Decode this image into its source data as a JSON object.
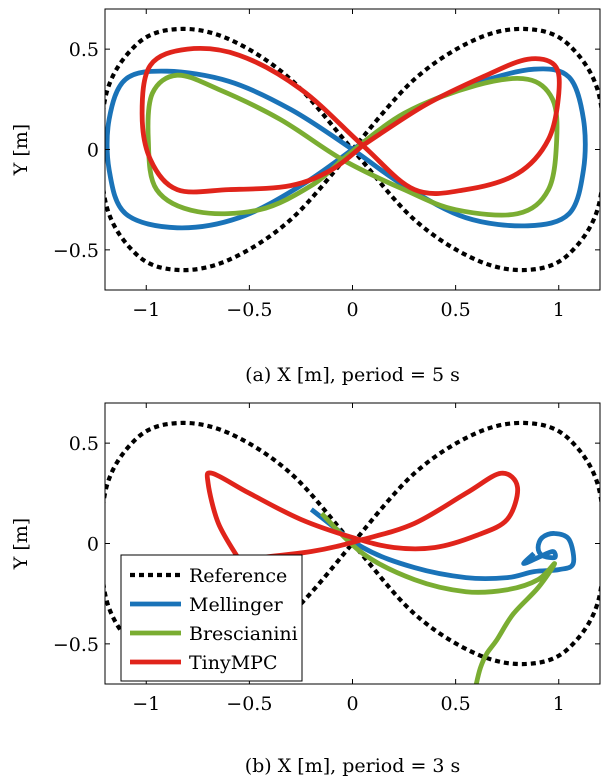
{
  "chart_data": [
    {
      "type": "line",
      "caption": "(a) X [m], period = 5 s",
      "ylabel": "Y [m]",
      "xlim": [
        -1.2,
        1.2
      ],
      "ylim": [
        -0.7,
        0.7
      ],
      "xticks": [
        -1,
        -0.5,
        0,
        0.5,
        1
      ],
      "xtick_labels": [
        "−1",
        "−0.5",
        "0",
        "0.5",
        "1"
      ],
      "yticks": [
        -0.5,
        0,
        0.5
      ],
      "ytick_labels": [
        "−0.5",
        "0",
        "0.5"
      ],
      "grid": false,
      "series": [
        {
          "name": "Reference",
          "color": "#000000",
          "style": "dashed",
          "x": [
            0,
            0.3,
            0.6,
            0.85,
            1.05,
            1.2,
            1.2,
            1.05,
            0.85,
            0.6,
            0.3,
            0,
            -0.3,
            -0.6,
            -0.85,
            -1.05,
            -1.2,
            -1.2,
            -1.05,
            -0.85,
            -0.6,
            -0.3,
            0
          ],
          "y": [
            0,
            0.35,
            0.55,
            0.6,
            0.52,
            0.25,
            -0.25,
            -0.52,
            -0.6,
            -0.55,
            -0.35,
            0,
            0.35,
            0.55,
            0.6,
            0.52,
            0.25,
            -0.25,
            -0.52,
            -0.6,
            -0.55,
            -0.35,
            0
          ]
        },
        {
          "name": "Mellinger",
          "color": "#1a73b8",
          "style": "solid",
          "x": [
            0,
            0.3,
            0.6,
            0.88,
            1.05,
            1.12,
            1.12,
            1.05,
            0.85,
            0.55,
            0.25,
            0,
            -0.3,
            -0.6,
            -0.9,
            -1.1,
            -1.18,
            -1.18,
            -1.1,
            -0.85,
            -0.55,
            -0.25,
            0
          ],
          "y": [
            0,
            0.2,
            0.33,
            0.4,
            0.36,
            0.15,
            -0.1,
            -0.32,
            -0.38,
            -0.34,
            -0.18,
            0,
            0.2,
            0.34,
            0.39,
            0.35,
            0.15,
            -0.1,
            -0.32,
            -0.39,
            -0.34,
            -0.18,
            0
          ]
        },
        {
          "name": "Brescianini",
          "color": "#7aad32",
          "style": "solid",
          "x": [
            -0.05,
            0.25,
            0.6,
            0.85,
            0.97,
            0.99,
            0.95,
            0.8,
            0.5,
            0.25,
            -0.05,
            -0.35,
            -0.65,
            -0.85,
            -0.97,
            -0.99,
            -0.95,
            -0.75,
            -0.45,
            -0.2,
            -0.05
          ],
          "y": [
            -0.05,
            0.18,
            0.32,
            0.35,
            0.25,
            0.05,
            -0.2,
            -0.32,
            -0.3,
            -0.2,
            -0.05,
            0.15,
            0.3,
            0.37,
            0.28,
            0.05,
            -0.2,
            -0.31,
            -0.3,
            -0.18,
            -0.05
          ]
        },
        {
          "name": "TinyMPC",
          "color": "#e0241b",
          "style": "solid",
          "x": [
            0.05,
            0.35,
            0.65,
            0.85,
            0.98,
            1.0,
            0.95,
            0.8,
            0.55,
            0.3,
            0.05,
            -0.25,
            -0.55,
            -0.8,
            -0.98,
            -1.02,
            -0.98,
            -0.85,
            -0.6,
            -0.3,
            -0.1,
            0.05
          ],
          "y": [
            0.02,
            0.22,
            0.37,
            0.45,
            0.42,
            0.28,
            0.05,
            -0.12,
            -0.2,
            -0.2,
            0.02,
            0.3,
            0.47,
            0.5,
            0.42,
            0.18,
            -0.05,
            -0.2,
            -0.2,
            -0.18,
            -0.1,
            0.02
          ]
        }
      ]
    },
    {
      "type": "line",
      "caption": "(b) X [m], period = 3 s",
      "ylabel": "Y [m]",
      "xlim": [
        -1.2,
        1.2
      ],
      "ylim": [
        -0.7,
        0.7
      ],
      "xticks": [
        -1,
        -0.5,
        0,
        0.5,
        1
      ],
      "xtick_labels": [
        "−1",
        "−0.5",
        "0",
        "0.5",
        "1"
      ],
      "yticks": [
        -0.5,
        0,
        0.5
      ],
      "ytick_labels": [
        "−0.5",
        "0",
        "0.5"
      ],
      "grid": false,
      "legend": "bottom-left",
      "series": [
        {
          "name": "Reference",
          "color": "#000000",
          "style": "dashed",
          "x": [
            0,
            0.3,
            0.6,
            0.85,
            1.05,
            1.2,
            1.2,
            1.05,
            0.85,
            0.6,
            0.3,
            0,
            -0.3,
            -0.6,
            -0.85,
            -1.05,
            -1.2,
            -1.2,
            -1.05,
            -0.85,
            -0.6,
            -0.3,
            0
          ],
          "y": [
            0,
            0.35,
            0.55,
            0.6,
            0.52,
            0.25,
            -0.25,
            -0.52,
            -0.6,
            -0.55,
            -0.35,
            0,
            0.35,
            0.55,
            0.6,
            0.52,
            0.25,
            -0.25,
            -0.52,
            -0.6,
            -0.55,
            -0.35,
            0
          ]
        },
        {
          "name": "Mellinger",
          "color": "#1a73b8",
          "style": "solid",
          "x": [
            -0.2,
            0.05,
            0.3,
            0.55,
            0.75,
            0.88,
            1.0,
            1.07,
            1.05,
            0.98,
            0.92,
            0.9,
            0.92,
            0.98,
            0.97,
            0.9,
            0.83,
            0.88
          ],
          "y": [
            0.17,
            -0.02,
            -0.12,
            -0.17,
            -0.17,
            -0.14,
            -0.13,
            -0.1,
            0.02,
            0.05,
            0.03,
            -0.02,
            -0.06,
            -0.07,
            -0.04,
            -0.07,
            -0.1,
            -0.05
          ]
        },
        {
          "name": "Brescianini",
          "color": "#7aad32",
          "style": "solid",
          "x": [
            -0.15,
            0.05,
            0.3,
            0.55,
            0.75,
            0.9,
            0.98,
            0.9,
            0.78,
            0.7,
            0.65,
            0.62,
            0.6
          ],
          "y": [
            0.15,
            -0.05,
            -0.18,
            -0.24,
            -0.23,
            -0.18,
            -0.1,
            -0.22,
            -0.35,
            -0.48,
            -0.55,
            -0.62,
            -0.7
          ]
        },
        {
          "name": "TinyMPC",
          "color": "#e0241b",
          "style": "solid",
          "x": [
            -0.55,
            -0.2,
            0.05,
            0.3,
            0.55,
            0.72,
            0.8,
            0.75,
            0.6,
            0.4,
            0.2,
            0.0,
            -0.25,
            -0.5,
            -0.68,
            -0.7,
            -0.65,
            -0.55
          ],
          "y": [
            -0.08,
            -0.04,
            0.02,
            0.1,
            0.25,
            0.35,
            0.28,
            0.12,
            0.04,
            -0.02,
            -0.02,
            0.03,
            0.12,
            0.25,
            0.35,
            0.3,
            0.1,
            -0.08
          ]
        }
      ]
    }
  ]
}
